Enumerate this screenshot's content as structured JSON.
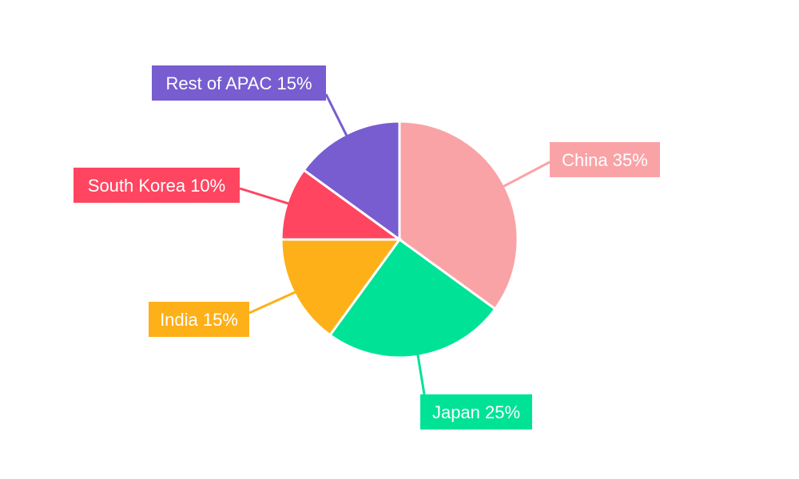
{
  "chart_data": {
    "type": "pie",
    "title": "",
    "start_angle_deg": 0,
    "direction": "clockwise",
    "legend": "none",
    "slices": [
      {
        "label": "China",
        "value": 35,
        "display": "China 35%",
        "color": "#F9A3A7"
      },
      {
        "label": "Japan",
        "value": 25,
        "display": "Japan 25%",
        "color": "#00E396"
      },
      {
        "label": "India",
        "value": 15,
        "display": "India 15%",
        "color": "#FEB019"
      },
      {
        "label": "South Korea",
        "value": 10,
        "display": "South Korea 10%",
        "color": "#FF4560"
      },
      {
        "label": "Rest of APAC",
        "value": 15,
        "display": "Rest of APAC 15%",
        "color": "#775DD0"
      }
    ]
  }
}
